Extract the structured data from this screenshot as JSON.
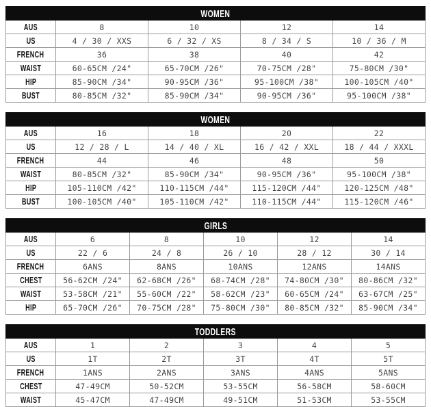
{
  "colors": {
    "header_bg": "#0d0d0d",
    "header_text": "#ffffff",
    "border": "#999999",
    "cell_text": "#444444",
    "label_text": "#121212"
  },
  "tables": [
    {
      "title": "WOMEN",
      "rows": [
        {
          "label": "AUS",
          "cells": [
            "8",
            "10",
            "12",
            "14"
          ]
        },
        {
          "label": "US",
          "cells": [
            "4 / 30 / XXS",
            "6 / 32 / XS",
            "8 / 34 / S",
            "10 / 36 / M"
          ]
        },
        {
          "label": "FRENCH",
          "cells": [
            "36",
            "38",
            "40",
            "42"
          ]
        },
        {
          "label": "WAIST",
          "cells": [
            "60-65CM /24\"",
            "65-70CM /26\"",
            "70-75CM /28\"",
            "75-80CM /30\""
          ]
        },
        {
          "label": "HIP",
          "cells": [
            "85-90CM /34\"",
            "90-95CM /36\"",
            "95-100CM /38\"",
            "100-105CM /40\""
          ]
        },
        {
          "label": "BUST",
          "cells": [
            "80-85CM /32\"",
            "85-90CM /34\"",
            "90-95CM /36\"",
            "95-100CM /38\""
          ]
        }
      ]
    },
    {
      "title": "WOMEN",
      "rows": [
        {
          "label": "AUS",
          "cells": [
            "16",
            "18",
            "20",
            "22"
          ]
        },
        {
          "label": "US",
          "cells": [
            "12 / 28 / L",
            "14 / 40 / XL",
            "16 / 42 / XXL",
            "18 / 44 / XXXL"
          ]
        },
        {
          "label": "FRENCH",
          "cells": [
            "44",
            "46",
            "48",
            "50"
          ]
        },
        {
          "label": "WAIST",
          "cells": [
            "80-85CM /32\"",
            "85-90CM /34\"",
            "90-95CM /36\"",
            "95-100CM /38\""
          ]
        },
        {
          "label": "HIP",
          "cells": [
            "105-110CM /42\"",
            "110-115CM /44\"",
            "115-120CM /44\"",
            "120-125CM /48\""
          ]
        },
        {
          "label": "BUST",
          "cells": [
            "100-105CM /40\"",
            "105-110CM /42\"",
            "110-115CM /44\"",
            "115-120CM /46\""
          ]
        }
      ]
    },
    {
      "title": "GIRLS",
      "rows": [
        {
          "label": "AUS",
          "cells": [
            "6",
            "8",
            "10",
            "12",
            "14"
          ]
        },
        {
          "label": "US",
          "cells": [
            "22 / 6",
            "24 / 8",
            "26 / 10",
            "28 / 12",
            "30 / 14"
          ]
        },
        {
          "label": "FRENCH",
          "cells": [
            "6ANS",
            "8ANS",
            "10ANS",
            "12ANS",
            "14ANS"
          ]
        },
        {
          "label": "CHEST",
          "cells": [
            "56-62CM /24\"",
            "62-68CM /26\"",
            "68-74CM /28\"",
            "74-80CM /30\"",
            "80-86CM /32\""
          ]
        },
        {
          "label": "WAIST",
          "cells": [
            "53-58CM /21\"",
            "55-60CM /22\"",
            "58-62CM /23\"",
            "60-65CM /24\"",
            "63-67CM /25\""
          ]
        },
        {
          "label": "HIP",
          "cells": [
            "65-70CM /26\"",
            "70-75CM /28\"",
            "75-80CM /30\"",
            "80-85CM /32\"",
            "85-90CM /34\""
          ]
        }
      ]
    },
    {
      "title": "TODDLERS",
      "rows": [
        {
          "label": "AUS",
          "cells": [
            "1",
            "2",
            "3",
            "4",
            "5"
          ]
        },
        {
          "label": "US",
          "cells": [
            "1T",
            "2T",
            "3T",
            "4T",
            "5T"
          ]
        },
        {
          "label": "FRENCH",
          "cells": [
            "1ANS",
            "2ANS",
            "3ANS",
            "4ANS",
            "5ANS"
          ]
        },
        {
          "label": "CHEST",
          "cells": [
            "47-49CM",
            "50-52CM",
            "53-55CM",
            "56-58CM",
            "58-60CM"
          ]
        },
        {
          "label": "WAIST",
          "cells": [
            "45-47CM",
            "47-49CM",
            "49-51CM",
            "51-53CM",
            "53-55CM"
          ]
        }
      ]
    }
  ]
}
